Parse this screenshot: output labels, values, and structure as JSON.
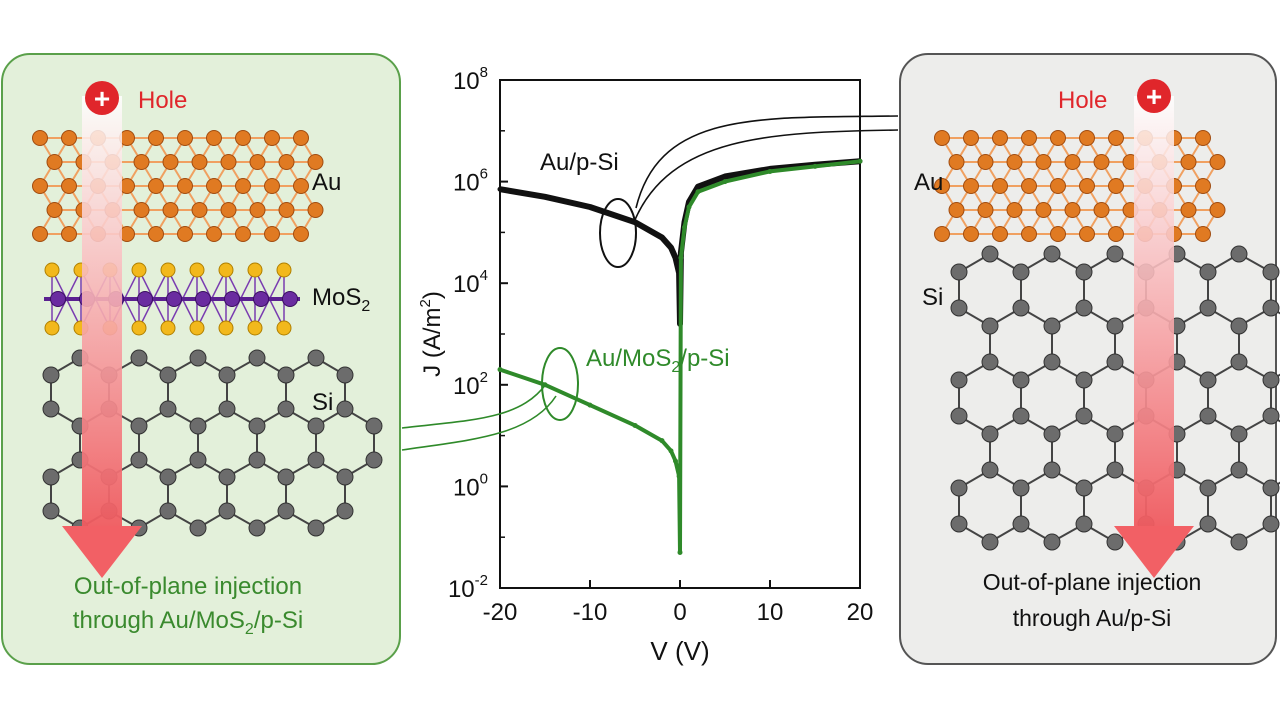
{
  "left_panel": {
    "hole_label": "Hole",
    "hole_symbol": "+",
    "layer_au": "Au",
    "layer_mos2_main": "MoS",
    "layer_mos2_sub": "2",
    "layer_si": "Si",
    "caption_line1": "Out-of-plane injection",
    "caption_line2_a": "through Au/MoS",
    "caption_line2_sub": "2",
    "caption_line2_b": "/p-Si",
    "caption_color": "#3a8a2e",
    "background": "#e3f0da",
    "border": "#5aa04a"
  },
  "right_panel": {
    "hole_label": "Hole",
    "hole_symbol": "+",
    "layer_au": "Au",
    "layer_si": "Si",
    "caption_line1": "Out-of-plane injection",
    "caption_line2": "through Au/p-Si",
    "background": "#ededeb",
    "border": "#555555"
  },
  "colors": {
    "hole_red": "#e0262b",
    "gold_atom": "#e07a22",
    "gold_bond": "#f0a060",
    "mo_atom": "#6a2ca0",
    "s_atom": "#f2b81c",
    "si_atom": "#6c6c6c",
    "si_bond": "#444444",
    "black_curve": "#111111",
    "green_curve": "#2f8a2a"
  },
  "chart_data": {
    "type": "line",
    "xlabel": "V (V)",
    "ylabel_main": "J (A/m",
    "ylabel_sup": "2",
    "ylabel_end": ")",
    "x_ticks": [
      "-20",
      "-10",
      "0",
      "10",
      "20"
    ],
    "y_ticks": [
      {
        "base": "10",
        "exp": "8"
      },
      {
        "base": "10",
        "exp": "6"
      },
      {
        "base": "10",
        "exp": "4"
      },
      {
        "base": "10",
        "exp": "2"
      },
      {
        "base": "10",
        "exp": "0"
      },
      {
        "base": "10",
        "exp": "-2"
      }
    ],
    "xlim": [
      -20,
      20
    ],
    "ylim_log10": [
      -2,
      8
    ],
    "log_y": true,
    "series": [
      {
        "name": "Au/p-Si",
        "label_main": "Au/p-Si",
        "color": "#111111",
        "x": [
          -20,
          -15,
          -10,
          -5,
          -2,
          -1,
          -0.5,
          -0.1,
          0,
          0.1,
          0.5,
          1,
          2,
          5,
          10,
          15,
          20
        ],
        "log10_y": [
          5.85,
          5.7,
          5.5,
          5.2,
          4.9,
          4.7,
          4.5,
          4.2,
          3.2,
          4.6,
          5.2,
          5.6,
          5.9,
          6.1,
          6.25,
          6.33,
          6.4
        ]
      },
      {
        "name": "Au/MoS2/p-Si",
        "label_main": "Au/MoS",
        "label_sub": "2",
        "label_end": "/p-Si",
        "color": "#2f8a2a",
        "x": [
          -20,
          -15,
          -10,
          -5,
          -2,
          -1,
          -0.5,
          -0.1,
          0,
          0.1,
          0.5,
          1,
          2,
          5,
          10,
          15,
          20
        ],
        "log10_y": [
          2.3,
          2.0,
          1.6,
          1.2,
          0.9,
          0.7,
          0.5,
          0.2,
          -1.3,
          4.5,
          5.1,
          5.5,
          5.8,
          6.0,
          6.2,
          6.3,
          6.4
        ]
      }
    ]
  }
}
